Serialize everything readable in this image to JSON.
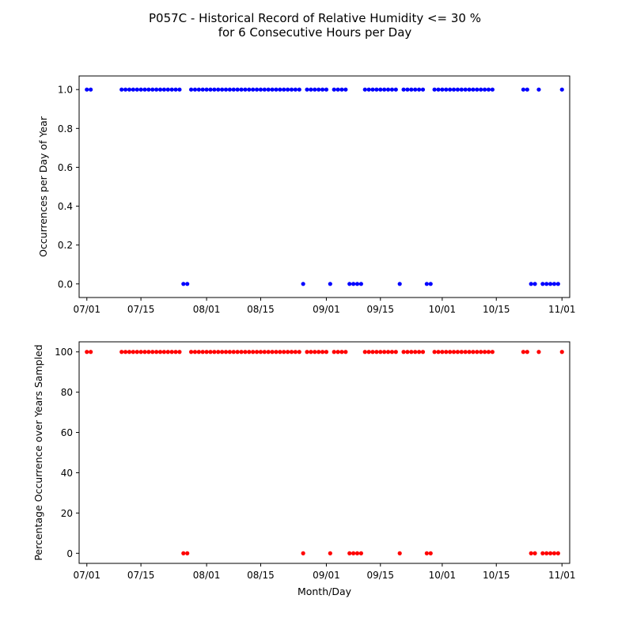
{
  "chart_data": {
    "title_line1": "P057C - Historical Record of Relative Humidity <= 30 %",
    "title_line2": "for 6 Consecutive Hours per Day",
    "xlabel": "Month/Day",
    "x_tick_labels": [
      "07/01",
      "07/15",
      "08/01",
      "08/15",
      "09/01",
      "09/15",
      "10/01",
      "10/15",
      "11/01"
    ],
    "x_ticks": [
      "2000-07-01",
      "2000-07-15",
      "2000-08-01",
      "2000-08-15",
      "2000-09-01",
      "2000-09-15",
      "2000-10-01",
      "2000-10-15",
      "2000-11-01"
    ],
    "xlim": [
      "2000-06-29",
      "2000-11-03"
    ],
    "x": [
      "2000-07-01",
      "2000-07-02",
      "2000-07-10",
      "2000-07-11",
      "2000-07-12",
      "2000-07-13",
      "2000-07-14",
      "2000-07-15",
      "2000-07-16",
      "2000-07-17",
      "2000-07-18",
      "2000-07-19",
      "2000-07-20",
      "2000-07-21",
      "2000-07-22",
      "2000-07-23",
      "2000-07-24",
      "2000-07-25",
      "2000-07-26",
      "2000-07-27",
      "2000-07-28",
      "2000-07-29",
      "2000-07-30",
      "2000-07-31",
      "2000-08-01",
      "2000-08-02",
      "2000-08-03",
      "2000-08-04",
      "2000-08-05",
      "2000-08-06",
      "2000-08-07",
      "2000-08-08",
      "2000-08-09",
      "2000-08-10",
      "2000-08-11",
      "2000-08-12",
      "2000-08-13",
      "2000-08-14",
      "2000-08-15",
      "2000-08-16",
      "2000-08-17",
      "2000-08-18",
      "2000-08-19",
      "2000-08-20",
      "2000-08-21",
      "2000-08-22",
      "2000-08-23",
      "2000-08-24",
      "2000-08-25",
      "2000-08-26",
      "2000-08-27",
      "2000-08-28",
      "2000-08-29",
      "2000-08-30",
      "2000-08-31",
      "2000-09-01",
      "2000-09-02",
      "2000-09-03",
      "2000-09-04",
      "2000-09-05",
      "2000-09-06",
      "2000-09-07",
      "2000-09-08",
      "2000-09-09",
      "2000-09-10",
      "2000-09-11",
      "2000-09-12",
      "2000-09-13",
      "2000-09-14",
      "2000-09-15",
      "2000-09-16",
      "2000-09-17",
      "2000-09-18",
      "2000-09-19",
      "2000-09-20",
      "2000-09-21",
      "2000-09-22",
      "2000-09-23",
      "2000-09-24",
      "2000-09-25",
      "2000-09-26",
      "2000-09-27",
      "2000-09-28",
      "2000-09-29",
      "2000-09-30",
      "2000-10-01",
      "2000-10-02",
      "2000-10-03",
      "2000-10-04",
      "2000-10-05",
      "2000-10-06",
      "2000-10-07",
      "2000-10-08",
      "2000-10-09",
      "2000-10-10",
      "2000-10-11",
      "2000-10-12",
      "2000-10-13",
      "2000-10-14",
      "2000-10-22",
      "2000-10-23",
      "2000-10-24",
      "2000-10-25",
      "2000-10-26",
      "2000-10-27",
      "2000-10-28",
      "2000-10-29",
      "2000-10-30",
      "2000-10-31",
      "2000-11-01"
    ],
    "subplots": [
      {
        "type": "scatter",
        "ylabel": "Occurrences per Day of Year",
        "ylim": [
          -0.07,
          1.07
        ],
        "y_ticks": [
          0.0,
          0.2,
          0.4,
          0.6,
          0.8,
          1.0
        ],
        "y_tick_labels": [
          "0.0",
          "0.2",
          "0.4",
          "0.6",
          "0.8",
          "1.0"
        ],
        "color": "#0000ff",
        "xlabel": "",
        "values": [
          1,
          1,
          1,
          1,
          1,
          1,
          1,
          1,
          1,
          1,
          1,
          1,
          1,
          1,
          1,
          1,
          1,
          1,
          0,
          0,
          1,
          1,
          1,
          1,
          1,
          1,
          1,
          1,
          1,
          1,
          1,
          1,
          1,
          1,
          1,
          1,
          1,
          1,
          1,
          1,
          1,
          1,
          1,
          1,
          1,
          1,
          1,
          1,
          1,
          0,
          1,
          1,
          1,
          1,
          1,
          1,
          0,
          1,
          1,
          1,
          1,
          0,
          0,
          0,
          0,
          1,
          1,
          1,
          1,
          1,
          1,
          1,
          1,
          1,
          0,
          1,
          1,
          1,
          1,
          1,
          1,
          0,
          0,
          1,
          1,
          1,
          1,
          1,
          1,
          1,
          1,
          1,
          1,
          1,
          1,
          1,
          1,
          1,
          1,
          1,
          1,
          0,
          0,
          1,
          0,
          0,
          0,
          0,
          0,
          1
        ]
      },
      {
        "type": "scatter",
        "ylabel": "Percentage Occurrence over Years Sampled",
        "ylim": [
          -5,
          105
        ],
        "y_ticks": [
          0,
          20,
          40,
          60,
          80,
          100
        ],
        "y_tick_labels": [
          "0",
          "20",
          "40",
          "60",
          "80",
          "100"
        ],
        "color": "#ff0000",
        "xlabel": "Month/Day",
        "values": [
          100,
          100,
          100,
          100,
          100,
          100,
          100,
          100,
          100,
          100,
          100,
          100,
          100,
          100,
          100,
          100,
          100,
          100,
          0,
          0,
          100,
          100,
          100,
          100,
          100,
          100,
          100,
          100,
          100,
          100,
          100,
          100,
          100,
          100,
          100,
          100,
          100,
          100,
          100,
          100,
          100,
          100,
          100,
          100,
          100,
          100,
          100,
          100,
          100,
          0,
          100,
          100,
          100,
          100,
          100,
          100,
          0,
          100,
          100,
          100,
          100,
          0,
          0,
          0,
          0,
          100,
          100,
          100,
          100,
          100,
          100,
          100,
          100,
          100,
          0,
          100,
          100,
          100,
          100,
          100,
          100,
          0,
          0,
          100,
          100,
          100,
          100,
          100,
          100,
          100,
          100,
          100,
          100,
          100,
          100,
          100,
          100,
          100,
          100,
          100,
          100,
          0,
          0,
          100,
          0,
          0,
          0,
          0,
          0,
          100
        ]
      }
    ]
  }
}
